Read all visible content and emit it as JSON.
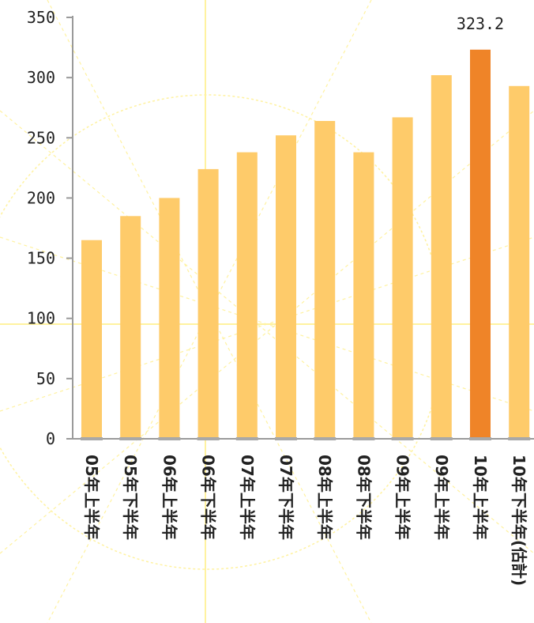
{
  "chart_data": {
    "type": "bar",
    "categories": [
      "05年上半年",
      "05年下半年",
      "06年上半年",
      "06年下半年",
      "07年上半年",
      "07年下半年",
      "08年上半年",
      "08年下半年",
      "09年上半年",
      "09年上半年",
      "10年上半年",
      "10年下半年(估計)"
    ],
    "values": [
      165,
      185,
      200,
      224,
      238,
      252,
      264,
      238,
      267,
      302,
      323.2,
      293
    ],
    "highlight_index": 10,
    "data_labels": [
      {
        "index": 10,
        "text": "323.2"
      }
    ],
    "ylim": [
      0,
      350
    ],
    "yticks": [
      0,
      50,
      100,
      150,
      200,
      250,
      300,
      350
    ],
    "title": "",
    "xlabel": "",
    "ylabel": "",
    "grid": false,
    "legend": "none",
    "colors": {
      "bar": "#fecb6a",
      "bar_highlight": "#ef8428",
      "axis": "#9a9a9a",
      "bar_base": "#a8a8a8",
      "watermark": "#fff2a0"
    }
  }
}
